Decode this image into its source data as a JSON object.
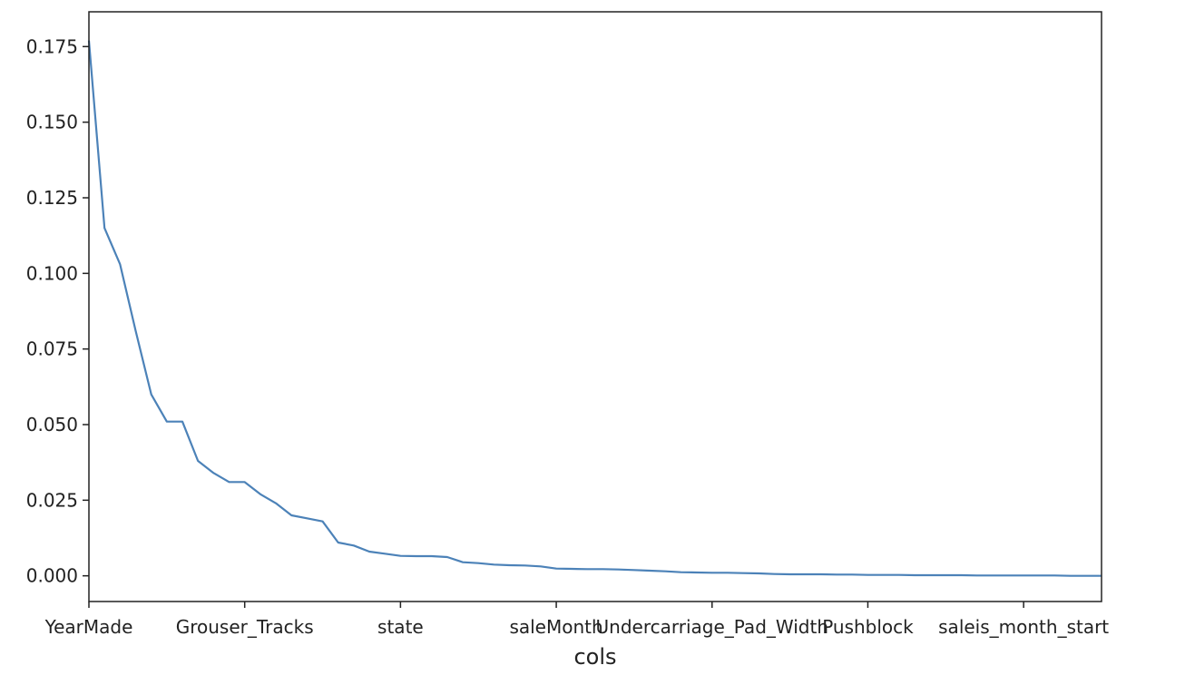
{
  "chart_data": {
    "type": "line",
    "xlabel": "cols",
    "ylabel": "",
    "title": "",
    "ylim": [
      -0.0085,
      0.1865
    ],
    "x_count": 66,
    "x_tick_positions": [
      0,
      10,
      20,
      30,
      40,
      50,
      60
    ],
    "x_tick_labels": [
      "YearMade",
      "Grouser_Tracks",
      "state",
      "saleMonth",
      "Undercarriage_Pad_Width",
      "Pushblock",
      "saleis_month_start"
    ],
    "y_ticks": [
      0.0,
      0.025,
      0.05,
      0.075,
      0.1,
      0.125,
      0.15,
      0.175
    ],
    "y_tick_labels": [
      "0.000",
      "0.025",
      "0.050",
      "0.075",
      "0.100",
      "0.125",
      "0.150",
      "0.175"
    ],
    "grid": false,
    "line_color": "#4c82b8",
    "series": [
      {
        "values": [
          0.177,
          0.115,
          0.103,
          0.081,
          0.06,
          0.051,
          0.051,
          0.038,
          0.034,
          0.031,
          0.031,
          0.027,
          0.024,
          0.02,
          0.019,
          0.018,
          0.011,
          0.01,
          0.008,
          0.0073,
          0.0066,
          0.0065,
          0.0065,
          0.0062,
          0.0045,
          0.0042,
          0.0037,
          0.0035,
          0.0034,
          0.0031,
          0.0024,
          0.0023,
          0.0022,
          0.0022,
          0.0021,
          0.0019,
          0.0017,
          0.0015,
          0.0012,
          0.0011,
          0.001,
          0.001,
          0.0009,
          0.0008,
          0.0006,
          0.0005,
          0.0005,
          0.0005,
          0.0004,
          0.0004,
          0.0003,
          0.0003,
          0.0003,
          0.0002,
          0.0002,
          0.0002,
          0.0002,
          0.0001,
          0.0001,
          0.0001,
          0.0001,
          0.0001,
          0.0001,
          0.0,
          0.0,
          0.0
        ]
      }
    ]
  }
}
